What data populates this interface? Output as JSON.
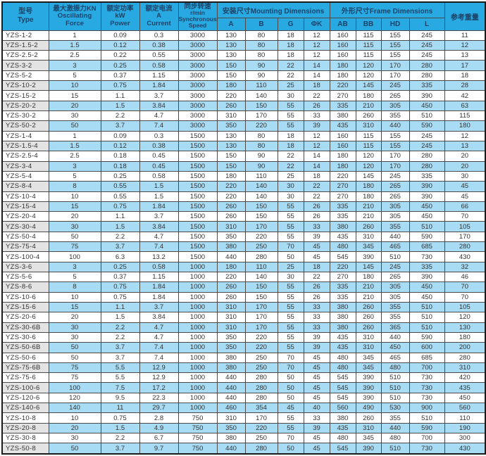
{
  "colors": {
    "header_bg": "#29a9e2",
    "header_text": "#1c4368",
    "row_alt_bg": "#a8dcf5",
    "type_alt_bg": "#e3e3e3",
    "grid": "#4a4a4a",
    "body_text": "#333333"
  },
  "header": {
    "type": [
      "型号",
      "Type"
    ],
    "force": [
      "最大激振力KN",
      "Oscillating",
      "Force"
    ],
    "power": [
      "额定功率",
      "kW",
      "Power"
    ],
    "current": [
      "额定电流",
      "A",
      "Current"
    ],
    "speed": [
      "同步转速",
      "r/min",
      "Synchronous",
      "Speed"
    ],
    "mounting_group": "安装尺寸Mounting Dimensions",
    "frame_group": "外形尺寸Frame Dimensions",
    "mounting_cols": [
      "A",
      "B",
      "G",
      "ΦK"
    ],
    "frame_cols": [
      "AB",
      "BB",
      "HD",
      "L"
    ],
    "weight": "参考重量"
  },
  "rows": [
    [
      "YZS-1-2",
      "1",
      "0.09",
      "0.3",
      "3000",
      "130",
      "80",
      "18",
      "12",
      "160",
      "115",
      "155",
      "245",
      "11"
    ],
    [
      "YZS-1.5-2",
      "1.5",
      "0.12",
      "0.38",
      "3000",
      "130",
      "80",
      "18",
      "12",
      "160",
      "115",
      "155",
      "245",
      "12"
    ],
    [
      "YZS-2.5-2",
      "2.5",
      "0.22",
      "0.55",
      "3000",
      "130",
      "80",
      "18",
      "12",
      "160",
      "115",
      "155",
      "245",
      "13"
    ],
    [
      "YZS-3-2",
      "3",
      "0.25",
      "0.58",
      "3000",
      "150",
      "90",
      "22",
      "14",
      "180",
      "120",
      "170",
      "280",
      "17"
    ],
    [
      "YZS-5-2",
      "5",
      "0.37",
      "1.15",
      "3000",
      "150",
      "90",
      "22",
      "14",
      "180",
      "120",
      "170",
      "280",
      "18"
    ],
    [
      "YZS-10-2",
      "10",
      "0.75",
      "1.84",
      "3000",
      "180",
      "110",
      "25",
      "18",
      "220",
      "145",
      "245",
      "335",
      "28"
    ],
    [
      "YZS-15-2",
      "15",
      "1.1",
      "3.7",
      "3000",
      "220",
      "140",
      "30",
      "22",
      "270",
      "180",
      "265",
      "390",
      "42"
    ],
    [
      "YZS-20-2",
      "20",
      "1.5",
      "3.84",
      "3000",
      "260",
      "150",
      "55",
      "26",
      "335",
      "210",
      "305",
      "450",
      "63"
    ],
    [
      "YZS-30-2",
      "30",
      "2.2",
      "4.7",
      "3000",
      "310",
      "170",
      "55",
      "33",
      "380",
      "260",
      "355",
      "510",
      "115"
    ],
    [
      "YZS-50-2",
      "50",
      "3.7",
      "7.4",
      "3000",
      "350",
      "220",
      "55",
      "39",
      "435",
      "310",
      "440",
      "590",
      "180"
    ],
    [
      "YZS-1-4",
      "1",
      "0.09",
      "0.3",
      "1500",
      "130",
      "80",
      "18",
      "12",
      "160",
      "115",
      "155",
      "245",
      "12"
    ],
    [
      "YZS-1.5-4",
      "1.5",
      "0.12",
      "0.38",
      "1500",
      "130",
      "80",
      "18",
      "12",
      "160",
      "115",
      "155",
      "245",
      "13"
    ],
    [
      "YZS-2.5-4",
      "2.5",
      "0.18",
      "0.45",
      "1500",
      "150",
      "90",
      "22",
      "14",
      "180",
      "120",
      "170",
      "280",
      "20"
    ],
    [
      "YZS-3-4",
      "3",
      "0.18",
      "0.45",
      "1500",
      "150",
      "90",
      "22",
      "14",
      "180",
      "120",
      "170",
      "280",
      "20"
    ],
    [
      "YZS-5-4",
      "5",
      "0.25",
      "0.58",
      "1500",
      "180",
      "110",
      "25",
      "18",
      "220",
      "145",
      "245",
      "335",
      "30"
    ],
    [
      "YZS-8-4",
      "8",
      "0.55",
      "1.5",
      "1500",
      "220",
      "140",
      "30",
      "22",
      "270",
      "180",
      "265",
      "390",
      "45"
    ],
    [
      "YZS-10-4",
      "10",
      "0.55",
      "1.5",
      "1500",
      "220",
      "140",
      "30",
      "22",
      "270",
      "180",
      "265",
      "390",
      "45"
    ],
    [
      "YZS-15-4",
      "15",
      "0.75",
      "1.84",
      "1500",
      "260",
      "150",
      "55",
      "26",
      "335",
      "210",
      "305",
      "450",
      "66"
    ],
    [
      "YZS-20-4",
      "20",
      "1.1",
      "3.7",
      "1500",
      "260",
      "150",
      "55",
      "26",
      "335",
      "210",
      "305",
      "450",
      "70"
    ],
    [
      "YZS-30-4",
      "30",
      "1.5",
      "3.84",
      "1500",
      "310",
      "170",
      "55",
      "33",
      "380",
      "260",
      "355",
      "510",
      "105"
    ],
    [
      "YZS-50-4",
      "50",
      "2.2",
      "4.7",
      "1500",
      "350",
      "220",
      "55",
      "39",
      "435",
      "310",
      "440",
      "590",
      "170"
    ],
    [
      "YZS-75-4",
      "75",
      "3.7",
      "7.4",
      "1500",
      "380",
      "250",
      "70",
      "45",
      "480",
      "345",
      "465",
      "685",
      "280"
    ],
    [
      "YZS-100-4",
      "100",
      "6.3",
      "13.2",
      "1500",
      "440",
      "280",
      "50",
      "45",
      "545",
      "390",
      "510",
      "730",
      "430"
    ],
    [
      "YZS-3-6",
      "3",
      "0.25",
      "0.58",
      "1000",
      "180",
      "110",
      "25",
      "18",
      "220",
      "145",
      "245",
      "335",
      "32"
    ],
    [
      "YZS-5-6",
      "5",
      "0.37",
      "1.15",
      "1000",
      "220",
      "140",
      "30",
      "22",
      "270",
      "180",
      "265",
      "390",
      "46"
    ],
    [
      "YZS-8-6",
      "8",
      "0.75",
      "1.84",
      "1000",
      "260",
      "150",
      "55",
      "26",
      "335",
      "210",
      "305",
      "450",
      "70"
    ],
    [
      "YZS-10-6",
      "10",
      "0.75",
      "1.84",
      "1000",
      "260",
      "150",
      "55",
      "26",
      "335",
      "210",
      "305",
      "450",
      "70"
    ],
    [
      "YZS-15-6",
      "15",
      "1.1",
      "3.7",
      "1000",
      "310",
      "170",
      "55",
      "33",
      "380",
      "260",
      "355",
      "510",
      "105"
    ],
    [
      "YZS-20-6",
      "20",
      "1.5",
      "3.84",
      "1000",
      "310",
      "170",
      "55",
      "33",
      "380",
      "260",
      "355",
      "510",
      "120"
    ],
    [
      "YZS-30-6B",
      "30",
      "2.2",
      "4.7",
      "1000",
      "310",
      "170",
      "55",
      "33",
      "380",
      "260",
      "365",
      "510",
      "130"
    ],
    [
      "YZS-30-6",
      "30",
      "2.2",
      "4.7",
      "1000",
      "350",
      "220",
      "55",
      "39",
      "435",
      "310",
      "440",
      "590",
      "180"
    ],
    [
      "YZS-50-6B",
      "50",
      "3.7",
      "7.4",
      "1000",
      "350",
      "220",
      "55",
      "39",
      "435",
      "310",
      "450",
      "600",
      "200"
    ],
    [
      "YZS-50-6",
      "50",
      "3.7",
      "7.4",
      "1000",
      "380",
      "250",
      "70",
      "45",
      "480",
      "345",
      "465",
      "685",
      "280"
    ],
    [
      "YZS-75-6B",
      "75",
      "5.5",
      "12.9",
      "1000",
      "380",
      "250",
      "70",
      "45",
      "480",
      "345",
      "480",
      "700",
      "310"
    ],
    [
      "YZS-75-6",
      "75",
      "5.5",
      "12.9",
      "1000",
      "440",
      "280",
      "50",
      "45",
      "545",
      "390",
      "510",
      "730",
      "420"
    ],
    [
      "YZS-100-6",
      "100",
      "7.5",
      "17.2",
      "1000",
      "440",
      "280",
      "50",
      "45",
      "545",
      "390",
      "510",
      "730",
      "435"
    ],
    [
      "YZS-120-6",
      "120",
      "9.5",
      "22.3",
      "1000",
      "440",
      "280",
      "50",
      "45",
      "545",
      "390",
      "510",
      "730",
      "450"
    ],
    [
      "YZS-140-6",
      "140",
      "11",
      "29.7",
      "1000",
      "460",
      "354",
      "45",
      "40",
      "560",
      "490",
      "530",
      "900",
      "560"
    ],
    [
      "YZS-10-8",
      "10",
      "0.75",
      "2.8",
      "750",
      "310",
      "170",
      "55",
      "33",
      "380",
      "260",
      "355",
      "510",
      "110"
    ],
    [
      "YZS-20-8",
      "20",
      "1.5",
      "4.9",
      "750",
      "350",
      "220",
      "55",
      "39",
      "435",
      "310",
      "440",
      "590",
      "190"
    ],
    [
      "YZS-30-8",
      "30",
      "2.2",
      "6.7",
      "750",
      "380",
      "250",
      "70",
      "45",
      "480",
      "345",
      "480",
      "700",
      "300"
    ],
    [
      "YZS-50-8",
      "50",
      "3.7",
      "9.7",
      "750",
      "440",
      "280",
      "50",
      "45",
      "545",
      "390",
      "510",
      "730",
      "430"
    ]
  ]
}
